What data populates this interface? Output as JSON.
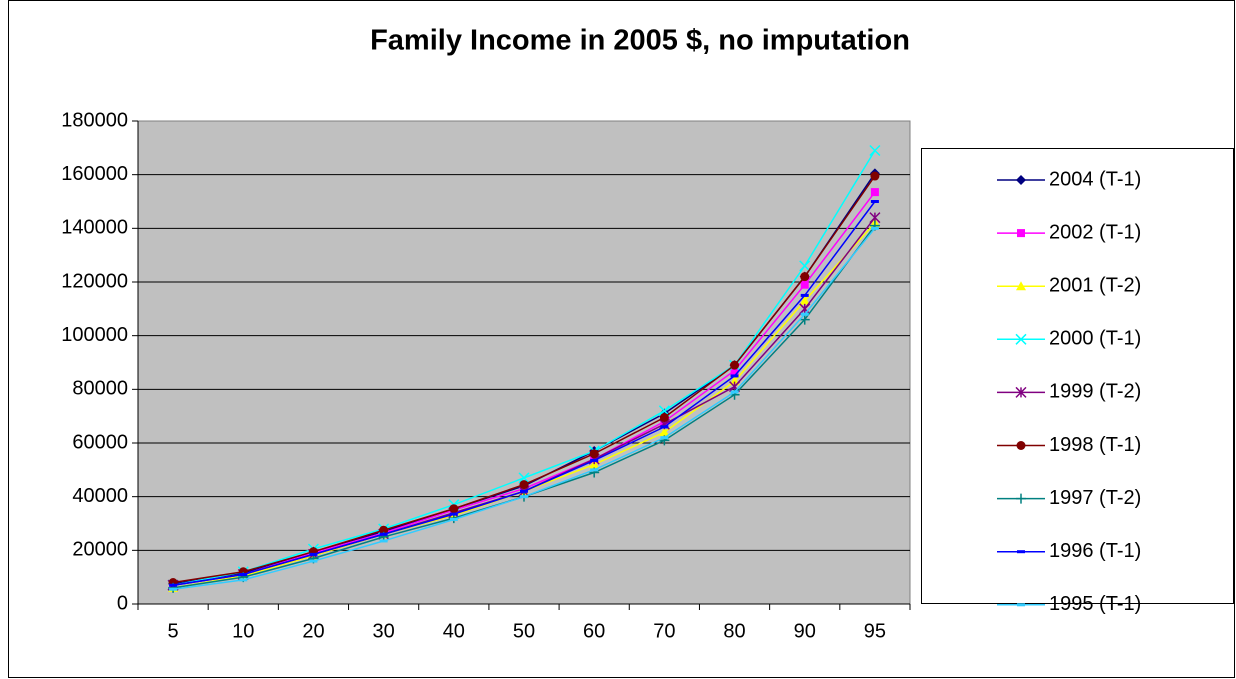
{
  "chart_data": {
    "type": "line",
    "title": "Family Income in 2005 $, no imputation",
    "categories": [
      "5",
      "10",
      "20",
      "30",
      "40",
      "50",
      "60",
      "70",
      "80",
      "90",
      "95"
    ],
    "ylim": [
      0,
      180000
    ],
    "yticks": [
      0,
      20000,
      40000,
      60000,
      80000,
      100000,
      120000,
      140000,
      160000,
      180000
    ],
    "grid": true,
    "legend": "right",
    "series": [
      {
        "name": "2004 (T-1)",
        "color": "#000080",
        "marker": "diamond",
        "values": [
          7500,
          11500,
          19500,
          27000,
          35500,
          44000,
          57000,
          71000,
          89000,
          122000,
          160500
        ]
      },
      {
        "name": "2002 (T-1)",
        "color": "#ff00ff",
        "marker": "square",
        "values": [
          7000,
          11000,
          19000,
          26500,
          35000,
          43000,
          54000,
          68000,
          87000,
          119000,
          153500
        ]
      },
      {
        "name": "2001 (T-2)",
        "color": "#ffff00",
        "marker": "triangle",
        "values": [
          6000,
          10500,
          18000,
          26000,
          33000,
          42000,
          52000,
          64000,
          83000,
          113000,
          142000
        ]
      },
      {
        "name": "2000 (T-1)",
        "color": "#00ffff",
        "marker": "x",
        "values": [
          7000,
          12000,
          20500,
          28000,
          37000,
          47000,
          57000,
          72000,
          89000,
          126000,
          169000
        ]
      },
      {
        "name": "1999 (T-2)",
        "color": "#800080",
        "marker": "star",
        "values": [
          7000,
          11000,
          18500,
          26000,
          34000,
          42000,
          54000,
          67000,
          81000,
          110000,
          144000
        ]
      },
      {
        "name": "1998 (T-1)",
        "color": "#800000",
        "marker": "circle",
        "values": [
          8000,
          12000,
          19500,
          27500,
          35500,
          44500,
          56000,
          69500,
          89000,
          122000,
          159500
        ]
      },
      {
        "name": "1997 (T-2)",
        "color": "#008080",
        "marker": "plus",
        "values": [
          6000,
          10000,
          17000,
          25000,
          32000,
          40000,
          49000,
          61000,
          78000,
          106000,
          141000
        ]
      },
      {
        "name": "1996 (T-1)",
        "color": "#0000ff",
        "marker": "dash",
        "values": [
          7000,
          11000,
          18500,
          26000,
          33500,
          42000,
          53500,
          66000,
          85000,
          115000,
          150000
        ]
      },
      {
        "name": "1995 (T-1)",
        "color": "#33ccff",
        "marker": "dash",
        "values": [
          5500,
          9000,
          16000,
          23500,
          31500,
          40000,
          50000,
          62000,
          79000,
          108000,
          140000
        ]
      }
    ]
  }
}
